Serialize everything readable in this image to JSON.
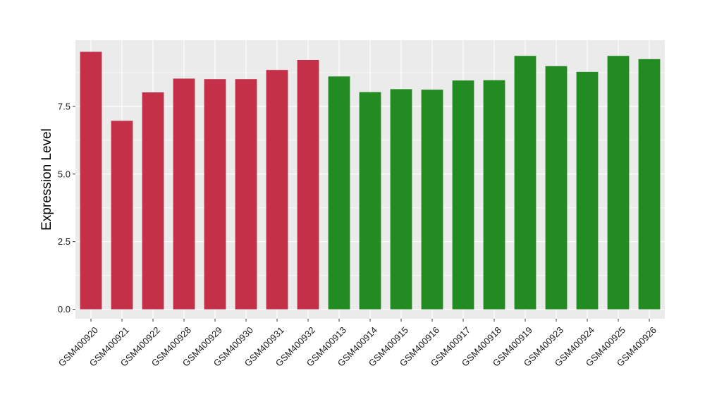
{
  "chart_data": {
    "type": "bar",
    "title": "",
    "xlabel": "",
    "ylabel": "Expression Level",
    "ylim": [
      -0.35,
      9.95
    ],
    "yticks": [
      0.0,
      2.5,
      5.0,
      7.5
    ],
    "ytick_labels": [
      "0.0",
      "2.5",
      "5.0",
      "7.5"
    ],
    "grid": true,
    "legend": "none",
    "colors": {
      "group_1": "#C33048",
      "group_2": "#228B22",
      "panel": "#EBEBEB",
      "gridline": "#FFFFFF"
    },
    "categories": [
      "GSM400920",
      "GSM400921",
      "GSM400922",
      "GSM400928",
      "GSM400929",
      "GSM400930",
      "GSM400931",
      "GSM400932",
      "GSM400913",
      "GSM400914",
      "GSM400915",
      "GSM400916",
      "GSM400917",
      "GSM400918",
      "GSM400919",
      "GSM400923",
      "GSM400924",
      "GSM400925",
      "GSM400926"
    ],
    "values": [
      9.52,
      6.97,
      8.02,
      8.53,
      8.51,
      8.51,
      8.85,
      9.22,
      8.61,
      8.03,
      8.14,
      8.12,
      8.46,
      8.47,
      9.37,
      8.99,
      8.78,
      9.37,
      9.25
    ],
    "bar_groups": [
      1,
      1,
      1,
      1,
      1,
      1,
      1,
      1,
      2,
      2,
      2,
      2,
      2,
      2,
      2,
      2,
      2,
      2,
      2
    ]
  }
}
